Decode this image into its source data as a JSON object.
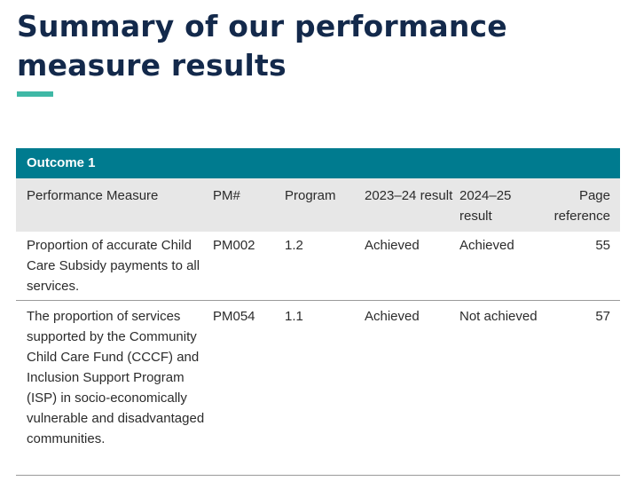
{
  "title": "Summary of our performance measure results",
  "accent_color": "#3fb8a6",
  "table": {
    "outcome_label": "Outcome 1",
    "outcome_color": "#007b8f",
    "headers": {
      "measure": "Performance Measure",
      "pm": "PM#",
      "program": "Program",
      "result_2324": "2023–24 result",
      "result_2425": "2024–25 result",
      "page_ref": "Page reference"
    },
    "rows": [
      {
        "measure": "Proportion of accurate Child Care Subsidy payments to all services.",
        "pm": "PM002",
        "program": "1.2",
        "result_2324": "Achieved",
        "result_2425": "Achieved",
        "page_ref": "55"
      },
      {
        "measure": "The proportion of services supported by the Community Child Care Fund (CCCF) and Inclusion Support Program (ISP) in socio-economically vulnerable and disadvantaged communities.",
        "pm": "PM054",
        "program": "1.1",
        "result_2324": "Achieved",
        "result_2425": "Not achieved",
        "page_ref": "57"
      }
    ]
  }
}
